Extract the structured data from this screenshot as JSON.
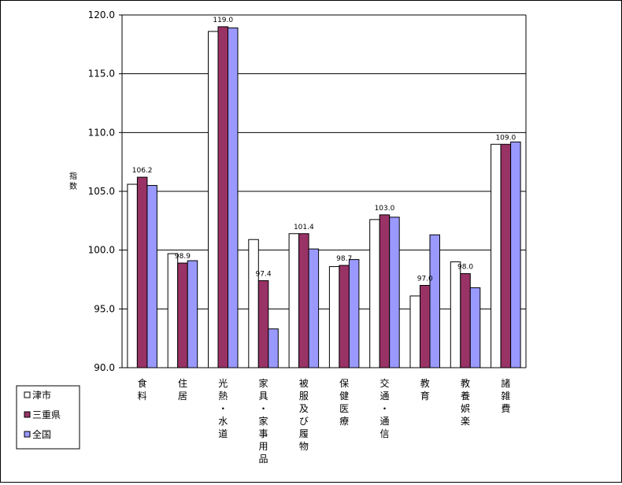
{
  "chart_data": {
    "type": "bar",
    "title": "",
    "ylabel": "指数",
    "xlabel": "",
    "ylim": [
      90,
      120
    ],
    "yticks": [
      "90.0",
      "95.0",
      "100.0",
      "105.0",
      "110.0",
      "115.0",
      "120.0"
    ],
    "grid": true,
    "legend_position": "bottom-left",
    "categories": [
      "食料",
      "住居",
      "光熱・水道",
      "家具・家事用品",
      "被服及び履物",
      "保健医療",
      "交通・通信",
      "教育",
      "教養娯楽",
      "諸雑費"
    ],
    "series": [
      {
        "name": "津市",
        "color": "#ffffff",
        "values": [
          105.6,
          99.7,
          118.6,
          100.9,
          101.4,
          98.6,
          102.6,
          96.1,
          99.0,
          109.0
        ]
      },
      {
        "name": "三重県",
        "color": "#993366",
        "values": [
          106.2,
          98.9,
          119.0,
          97.4,
          101.4,
          98.7,
          103.0,
          97.0,
          98.0,
          109.0
        ]
      },
      {
        "name": "全国",
        "color": "#9999ff",
        "values": [
          105.5,
          99.1,
          118.9,
          93.3,
          100.1,
          99.2,
          102.8,
          101.3,
          96.8,
          109.2
        ]
      }
    ],
    "data_labels": [
      "106.2",
      "98.9",
      "119.0",
      "97.4",
      "101.4",
      "98.7",
      "103.0",
      "97.0",
      "98.0",
      "109.0"
    ]
  }
}
